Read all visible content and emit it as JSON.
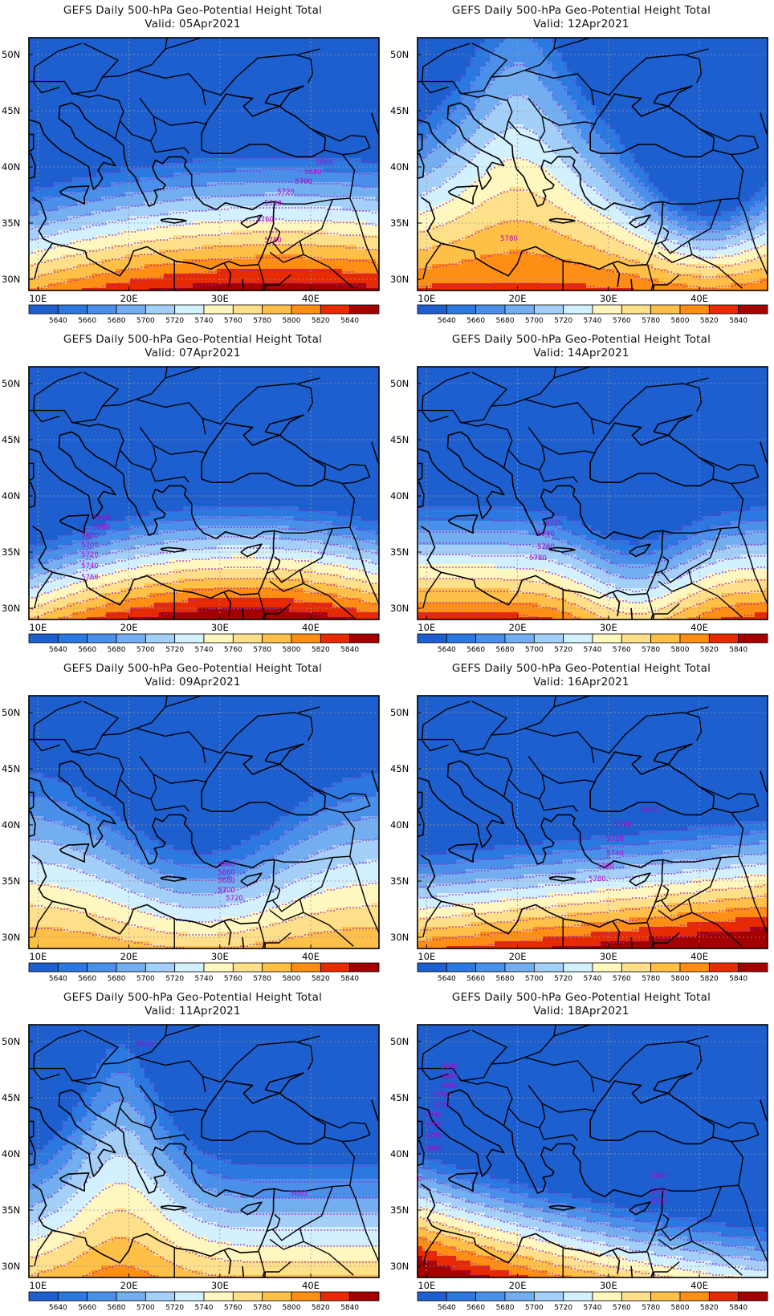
{
  "title_line": "GEFS Daily 500-hPa Geo-Potential Height Total",
  "valid_prefix": "Valid:",
  "lat_labels": [
    "50N",
    "45N",
    "40N",
    "35N",
    "30N"
  ],
  "lon_labels": [
    "10E",
    "20E",
    "30E",
    "40E"
  ],
  "colorbar": {
    "levels": [
      "5640",
      "5660",
      "5680",
      "5700",
      "5720",
      "5740",
      "5760",
      "5780",
      "5800",
      "5820",
      "5840"
    ],
    "colors": [
      "#1e5fd0",
      "#2a78e0",
      "#4a90ea",
      "#73aef0",
      "#a4cff8",
      "#d2f0fd",
      "#fff7c0",
      "#ffe08a",
      "#ffc048",
      "#ff8e14",
      "#e82a00",
      "#a40000"
    ]
  },
  "colors": {
    "coastline": "#000000",
    "contour": "#a020c8",
    "contour_label": "#b400c8",
    "grid": "#9a9a9a"
  },
  "panels": [
    {
      "valid": "05Apr2021",
      "labels": [
        "5660",
        "5680",
        "5700",
        "5720",
        "5740",
        "5760",
        "5780"
      ]
    },
    {
      "valid": "12Apr2021",
      "labels": [
        "5780"
      ]
    },
    {
      "valid": "07Apr2021",
      "labels": [
        "5640",
        "5660",
        "5680",
        "5700",
        "5720",
        "5740",
        "5760"
      ]
    },
    {
      "valid": "14Apr2021",
      "labels": [
        "5720",
        "5740",
        "5760",
        "5780"
      ]
    },
    {
      "valid": "09Apr2021",
      "labels": [
        "5640",
        "5660",
        "5680",
        "5700",
        "5720"
      ]
    },
    {
      "valid": "16Apr2021",
      "labels": [
        "5680",
        "5700",
        "5720",
        "5740",
        "5760",
        "5780"
      ]
    },
    {
      "valid": "11Apr2021",
      "labels": [
        "5660",
        "5660"
      ]
    },
    {
      "valid": "18Apr2021",
      "labels": [
        "5640",
        "5660",
        "5680",
        "5700",
        "5720",
        "5740",
        "5760",
        "5780",
        "5800",
        "5820",
        "5680",
        "5720",
        "5740"
      ]
    }
  ]
}
